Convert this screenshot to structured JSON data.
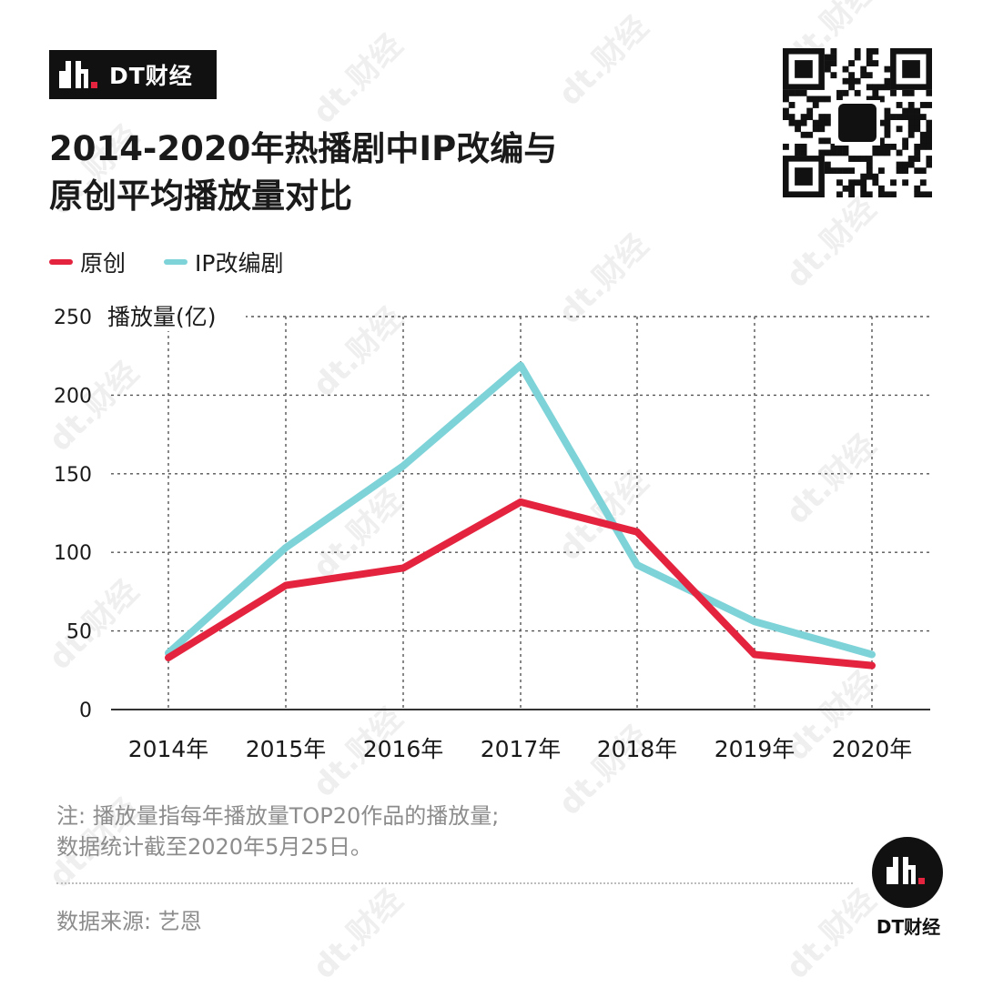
{
  "brand": {
    "name": "DT财经",
    "footer_name": "DT财经"
  },
  "title_lines": [
    "2014-2020年热播剧中IP改编与",
    "原创平均播放量对比"
  ],
  "watermark_text": "dt.财经",
  "colors": {
    "original": "#e4243f",
    "ip": "#7dd3d8",
    "axis": "#333333",
    "grid": "#555555",
    "text": "#1a1a1a",
    "muted": "#8c8c8c"
  },
  "chart_data": {
    "type": "line",
    "title": "2014-2020年热播剧中IP改编与原创平均播放量对比",
    "ylabel": "播放量(亿)",
    "xlabel": "",
    "categories": [
      "2014年",
      "2015年",
      "2016年",
      "2017年",
      "2018年",
      "2019年",
      "2020年"
    ],
    "series": [
      {
        "name": "原创",
        "values": [
          33,
          79,
          90,
          132,
          113,
          35,
          28
        ]
      },
      {
        "name": "IP改编剧",
        "values": [
          36,
          103,
          155,
          219,
          92,
          56,
          35
        ]
      }
    ],
    "ylim": [
      0,
      250
    ],
    "yticks": [
      0,
      50,
      100,
      150,
      200,
      250
    ],
    "grid": true,
    "legend_position": "top-left"
  },
  "footnote": [
    "注: 播放量指每年播放量TOP20作品的播放量;",
    "数据统计截至2020年5月25日。"
  ],
  "source": "数据来源: 艺恩"
}
